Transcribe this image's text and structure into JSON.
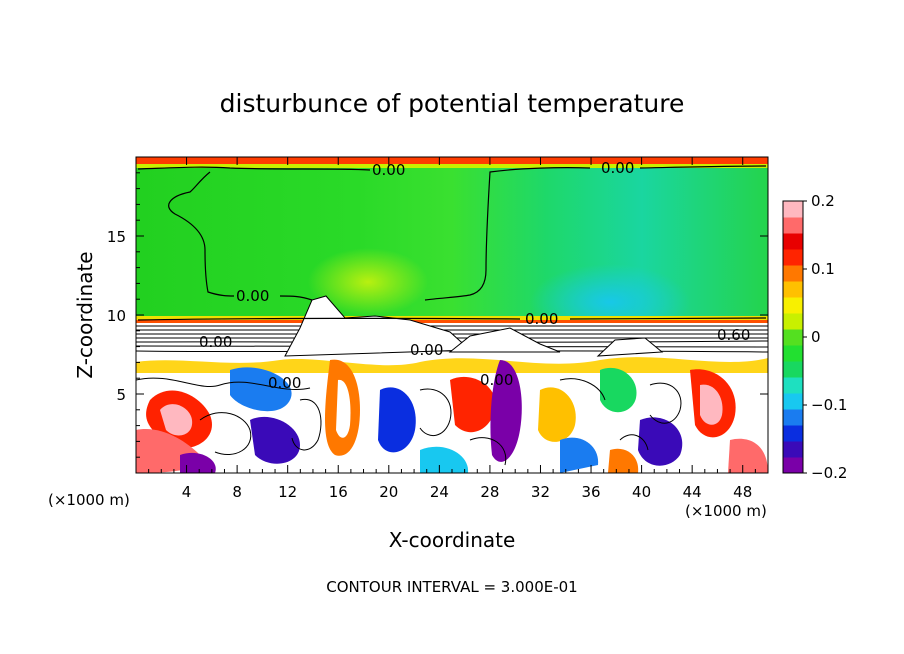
{
  "chart_data": {
    "type": "heatmap",
    "title": "disturbunce of potential temperature",
    "xlabel": "X-coordinate",
    "ylabel": "Z-coordinate",
    "x_unit": "(×1000 m)",
    "x_unit_right": "(×1000 m)",
    "footer": "CONTOUR INTERVAL = 3.000E-01",
    "xlim": [
      0,
      50
    ],
    "ylim": [
      0,
      20
    ],
    "x_ticks": [
      4,
      8,
      12,
      16,
      20,
      24,
      28,
      32,
      36,
      40,
      44,
      48
    ],
    "x_tick_labels": [
      "4",
      "8",
      "12",
      "16",
      "20",
      "24",
      "28",
      "32",
      "36",
      "40",
      "44",
      "48"
    ],
    "y_ticks": [
      5,
      10,
      15
    ],
    "y_tick_labels": [
      "5",
      "10",
      "15"
    ],
    "colorbar": {
      "range": [
        -0.2,
        0.2
      ],
      "ticks": [
        0.2,
        0.1,
        0,
        -0.1,
        -0.2
      ],
      "tick_labels": [
        "0.2",
        "0.1",
        "0",
        "−0.1",
        "−0.2"
      ],
      "colors": [
        "#7a00a8",
        "#3a0ab8",
        "#0a2ee0",
        "#1a7cf0",
        "#18c8f0",
        "#1ee0c0",
        "#18d860",
        "#22e030",
        "#54e020",
        "#c8f000",
        "#f8f000",
        "#ffc000",
        "#ff7800",
        "#ff2400",
        "#e80000",
        "#ff6a6a",
        "#ffb8c0"
      ]
    },
    "contour_labels": [
      {
        "text": "0.00",
        "x": 15.1,
        "y": 18.9
      },
      {
        "text": "0.00",
        "x": 38.8,
        "y": 19.0
      },
      {
        "text": "0.00",
        "x": 9.4,
        "y": 11.1
      },
      {
        "text": "0.00",
        "x": 32.0,
        "y": 9.8
      },
      {
        "text": "0.60",
        "x": 47.5,
        "y": 8.6
      },
      {
        "text": "0.00",
        "x": 6.6,
        "y": 8.3
      },
      {
        "text": "0.00",
        "x": 12.0,
        "y": 5.8
      },
      {
        "text": "0.00",
        "x": 28.8,
        "y": 5.9
      },
      {
        "text": "0.00",
        "x": 26.8,
        "y": 7.8
      }
    ]
  }
}
